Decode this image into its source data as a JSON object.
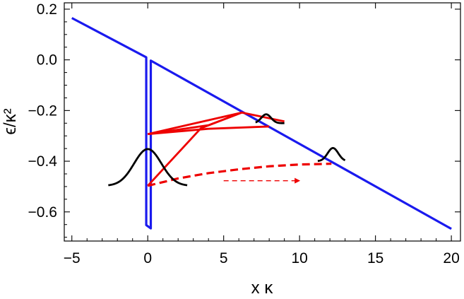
{
  "chart_data": {
    "type": "line",
    "xlabel": "x κ",
    "ylabel": "ϵ/κ²",
    "xlim": [
      -5.5,
      20.6
    ],
    "ylim": [
      -0.715,
      0.225
    ],
    "xticks": [
      -5,
      0,
      5,
      10,
      15,
      20
    ],
    "yticks": [
      0.2,
      0.0,
      -0.2,
      -0.4,
      -0.6
    ],
    "xtick_labels": [
      "−5",
      "0",
      "5",
      "10",
      "15",
      "20"
    ],
    "ytick_labels": [
      "0.2",
      "0.0",
      "−0.2",
      "−0.4",
      "−0.6"
    ],
    "grid": false,
    "colors": {
      "potential": "#1a1aee",
      "trajectory": "#ee0000",
      "wavepacket": "#000000"
    },
    "series": [
      {
        "color": "#1a1aee",
        "style": "solid",
        "width": 3.2,
        "points": [
          [
            -5,
            0.165
          ],
          [
            -0.1,
            0.01
          ],
          [
            -0.1,
            -0.652
          ],
          [
            0.2,
            -0.665
          ],
          [
            0.2,
            -0.003
          ],
          [
            20,
            -0.667
          ]
        ]
      },
      {
        "color": "#ee0000",
        "style": "solid",
        "width": 2.8,
        "points": [
          [
            0,
            -0.293
          ],
          [
            6.2,
            -0.208
          ],
          [
            3.5,
            -0.27
          ],
          [
            0,
            -0.497
          ]
        ]
      },
      {
        "color": "#ee0000",
        "style": "solid",
        "width": 2.8,
        "points": [
          [
            0,
            -0.293
          ],
          [
            4,
            -0.272
          ],
          [
            8,
            -0.263
          ]
        ]
      },
      {
        "color": "#ee0000",
        "style": "solid",
        "width": 2.8,
        "points": [
          [
            0,
            -0.293
          ],
          [
            4,
            -0.258
          ],
          [
            6.2,
            -0.208
          ],
          [
            9,
            -0.243
          ]
        ]
      },
      {
        "color": "#ee0000",
        "style": "dashed",
        "width": 3.2,
        "points": [
          [
            0,
            -0.497
          ],
          [
            2,
            -0.468
          ],
          [
            4,
            -0.447
          ],
          [
            6,
            -0.432
          ],
          [
            8,
            -0.42
          ],
          [
            10,
            -0.413
          ],
          [
            12.1,
            -0.41
          ]
        ]
      },
      {
        "color": "#ee0000",
        "style": "dashed-arrow",
        "width": 1.4,
        "points": [
          [
            5,
            -0.477
          ],
          [
            10,
            -0.477
          ]
        ]
      },
      {
        "color": "#000000",
        "style": "gaussian",
        "width": 2.8,
        "center": 0,
        "base": -0.497,
        "height": 0.145,
        "sigma": 0.9,
        "xmin": -2.6,
        "xmax": 2.6
      },
      {
        "color": "#000000",
        "style": "gaussian",
        "width": 2.8,
        "center": 7.8,
        "base": -0.25,
        "height": 0.035,
        "sigma": 0.32,
        "xmin": 7.1,
        "xmax": 9.0
      },
      {
        "color": "#000000",
        "style": "gaussian",
        "width": 2.8,
        "center": 12.2,
        "base": -0.4,
        "height": 0.052,
        "sigma": 0.35,
        "xmin": 11.2,
        "xmax": 13.0
      }
    ]
  }
}
